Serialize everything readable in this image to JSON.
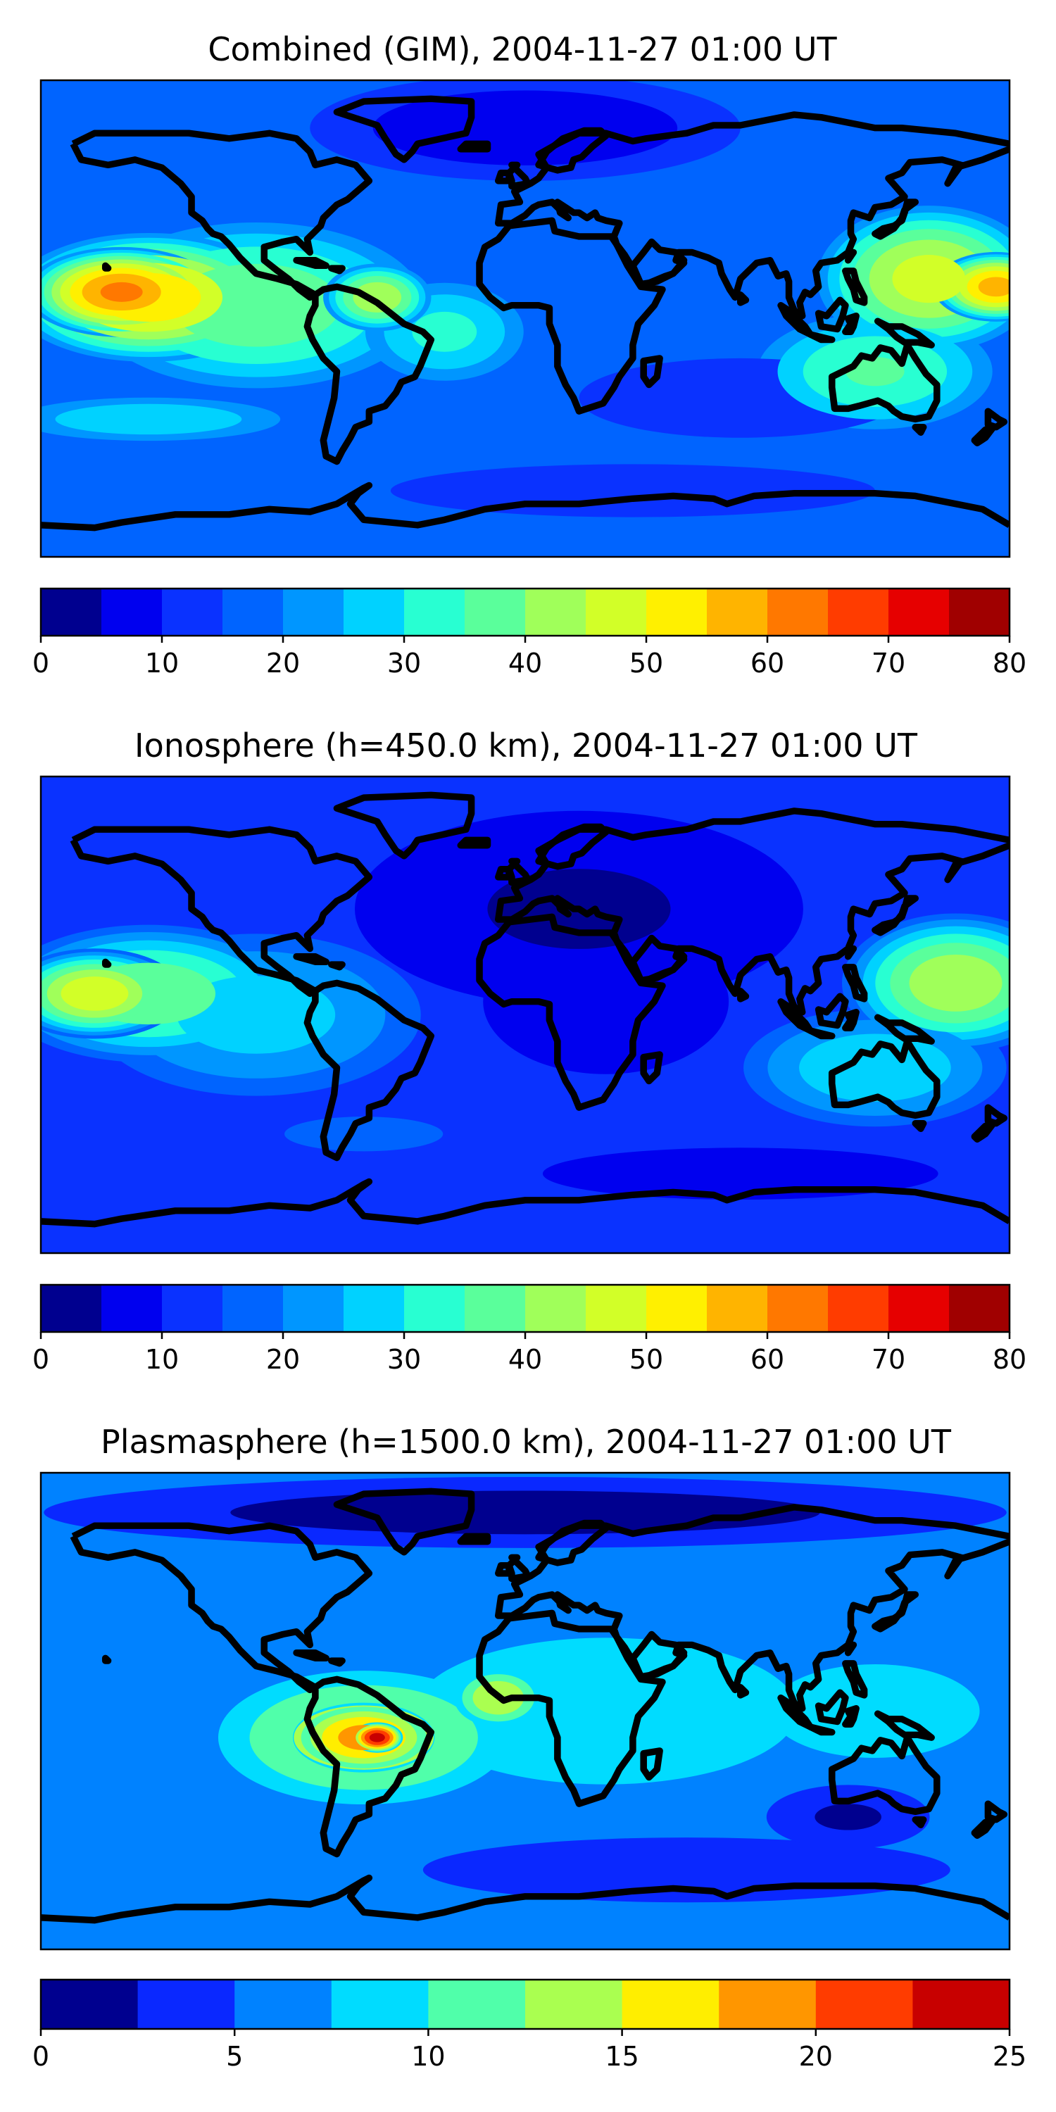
{
  "panels": [
    {
      "title": "Combined (GIM), 2004-11-27 01:00 UT",
      "colorbar": {
        "ticks": [
          "0",
          "10",
          "20",
          "30",
          "40",
          "50",
          "60",
          "70",
          "80"
        ],
        "range": [
          0,
          80
        ],
        "levels": [
          0,
          5,
          10,
          15,
          20,
          25,
          30,
          35,
          40,
          45,
          50,
          55,
          60,
          65,
          70,
          75,
          80
        ],
        "colors": [
          "#00008f",
          "#0000ef",
          "#0a32ff",
          "#0064ff",
          "#0096ff",
          "#00d2ff",
          "#28ffd2",
          "#5aff9b",
          "#a0ff5a",
          "#d2ff28",
          "#fff000",
          "#ffb400",
          "#ff7800",
          "#ff3c00",
          "#e60000",
          "#a00000"
        ]
      },
      "field": {
        "background": 15,
        "blobs": [
          {
            "lon": -150,
            "lat": 10,
            "value": 62,
            "rx": 38,
            "ry": 18
          },
          {
            "lon": -140,
            "lat": 8,
            "value": 55,
            "rx": 55,
            "ry": 26
          },
          {
            "lon": -100,
            "lat": 5,
            "value": 40,
            "rx": 70,
            "ry": 35
          },
          {
            "lon": -55,
            "lat": 8,
            "value": 45,
            "rx": 22,
            "ry": 14
          },
          {
            "lon": -30,
            "lat": -5,
            "value": 32,
            "rx": 35,
            "ry": 22
          },
          {
            "lon": 150,
            "lat": 15,
            "value": 48,
            "rx": 45,
            "ry": 30
          },
          {
            "lon": 175,
            "lat": 12,
            "value": 58,
            "rx": 25,
            "ry": 14
          },
          {
            "lon": 130,
            "lat": -20,
            "value": 36,
            "rx": 50,
            "ry": 25
          },
          {
            "lon": 0,
            "lat": 72,
            "value": 5,
            "rx": 80,
            "ry": 20
          },
          {
            "lon": -140,
            "lat": -38,
            "value": 30,
            "rx": 60,
            "ry": 10
          },
          {
            "lon": 80,
            "lat": -30,
            "value": 10,
            "rx": 60,
            "ry": 15
          },
          {
            "lon": 40,
            "lat": -65,
            "value": 10,
            "rx": 90,
            "ry": 10
          }
        ]
      }
    },
    {
      "title": "Ionosphere  (h=450.0 km), 2004-11-27 01:00 UT",
      "colorbar": {
        "ticks": [
          "0",
          "10",
          "20",
          "30",
          "40",
          "50",
          "60",
          "70",
          "80"
        ],
        "range": [
          0,
          80
        ],
        "levels": [
          0,
          5,
          10,
          15,
          20,
          25,
          30,
          35,
          40,
          45,
          50,
          55,
          60,
          65,
          70,
          75,
          80
        ],
        "colors": [
          "#00008f",
          "#0000ef",
          "#0a32ff",
          "#0064ff",
          "#0096ff",
          "#00d2ff",
          "#28ffd2",
          "#5aff9b",
          "#a0ff5a",
          "#d2ff28",
          "#fff000",
          "#ffb400",
          "#ff7800",
          "#ff3c00",
          "#e60000",
          "#a00000"
        ]
      },
      "field": {
        "background": 11,
        "blobs": [
          {
            "lon": -160,
            "lat": 8,
            "value": 50,
            "rx": 35,
            "ry": 18
          },
          {
            "lon": -140,
            "lat": 8,
            "value": 40,
            "rx": 60,
            "ry": 28
          },
          {
            "lon": -100,
            "lat": 0,
            "value": 28,
            "rx": 70,
            "ry": 35
          },
          {
            "lon": 160,
            "lat": 12,
            "value": 45,
            "rx": 45,
            "ry": 28
          },
          {
            "lon": 130,
            "lat": -20,
            "value": 30,
            "rx": 55,
            "ry": 25
          },
          {
            "lon": 20,
            "lat": 40,
            "value": 4,
            "rx": 90,
            "ry": 40
          },
          {
            "lon": 30,
            "lat": 5,
            "value": 5,
            "rx": 50,
            "ry": 30
          },
          {
            "lon": -60,
            "lat": -45,
            "value": 18,
            "rx": 45,
            "ry": 10
          },
          {
            "lon": 80,
            "lat": -60,
            "value": 8,
            "rx": 90,
            "ry": 12
          }
        ]
      }
    },
    {
      "title": "Plasmasphere (h=1500.0 km), 2004-11-27 01:00 UT",
      "colorbar": {
        "ticks": [
          "0",
          "5",
          "10",
          "15",
          "20",
          "25"
        ],
        "range": [
          0,
          25
        ],
        "levels": [
          0,
          2.5,
          5,
          7.5,
          10,
          12.5,
          15,
          17.5,
          20,
          22.5,
          25
        ],
        "colors": [
          "#00008f",
          "#0a28ff",
          "#0082ff",
          "#00dcff",
          "#50ffaa",
          "#aaff50",
          "#ffee00",
          "#ff9600",
          "#ff3c00",
          "#c80000"
        ]
      },
      "field": {
        "background": 6,
        "blobs": [
          {
            "lon": -55,
            "lat": -10,
            "value": 24,
            "rx": 10,
            "ry": 6
          },
          {
            "lon": -60,
            "lat": -10,
            "value": 19,
            "rx": 28,
            "ry": 14
          },
          {
            "lon": -60,
            "lat": -10,
            "value": 14,
            "rx": 60,
            "ry": 28
          },
          {
            "lon": -10,
            "lat": 5,
            "value": 15,
            "rx": 18,
            "ry": 12
          },
          {
            "lon": 30,
            "lat": 0,
            "value": 10,
            "rx": 90,
            "ry": 35
          },
          {
            "lon": 130,
            "lat": 0,
            "value": 9,
            "rx": 55,
            "ry": 25
          },
          {
            "lon": 0,
            "lat": 75,
            "value": 1,
            "rx": 200,
            "ry": 15
          },
          {
            "lon": 120,
            "lat": -40,
            "value": 2,
            "rx": 35,
            "ry": 14
          },
          {
            "lon": 60,
            "lat": -60,
            "value": 3,
            "rx": 120,
            "ry": 15
          }
        ]
      }
    }
  ]
}
